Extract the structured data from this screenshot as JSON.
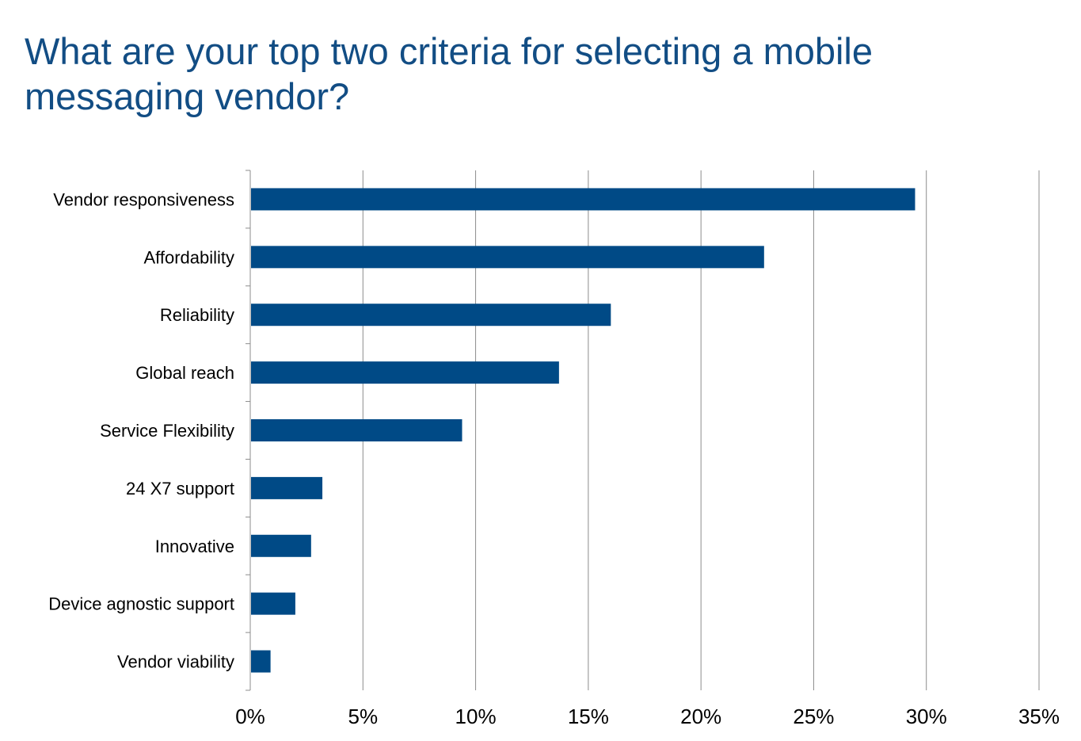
{
  "title": "What are your top two criteria for selecting a mobile messaging vendor?",
  "colors": {
    "title": "#124d84",
    "bar": "#004a86",
    "grid": "#8c8c8c",
    "axis": "#8c8c8c",
    "text": "#000000"
  },
  "chart_data": {
    "type": "bar",
    "orientation": "horizontal",
    "title": "What are your top two criteria for selecting a mobile messaging vendor?",
    "categories": [
      "Vendor responsiveness",
      "Affordability",
      "Reliability",
      "Global reach",
      "Service Flexibility",
      "24 X7 support",
      "Innovative",
      "Device agnostic support",
      "Vendor viability"
    ],
    "values": [
      29.5,
      22.8,
      16.0,
      13.7,
      9.4,
      3.2,
      2.7,
      2.0,
      0.9
    ],
    "value_unit": "%",
    "xlim": [
      0,
      35
    ],
    "xticks": [
      0,
      5,
      10,
      15,
      20,
      25,
      30,
      35
    ],
    "xtick_labels": [
      "0%",
      "5%",
      "10%",
      "15%",
      "20%",
      "25%",
      "30%",
      "35%"
    ],
    "xlabel": "",
    "ylabel": "",
    "grid": "vertical",
    "legend": "none"
  }
}
